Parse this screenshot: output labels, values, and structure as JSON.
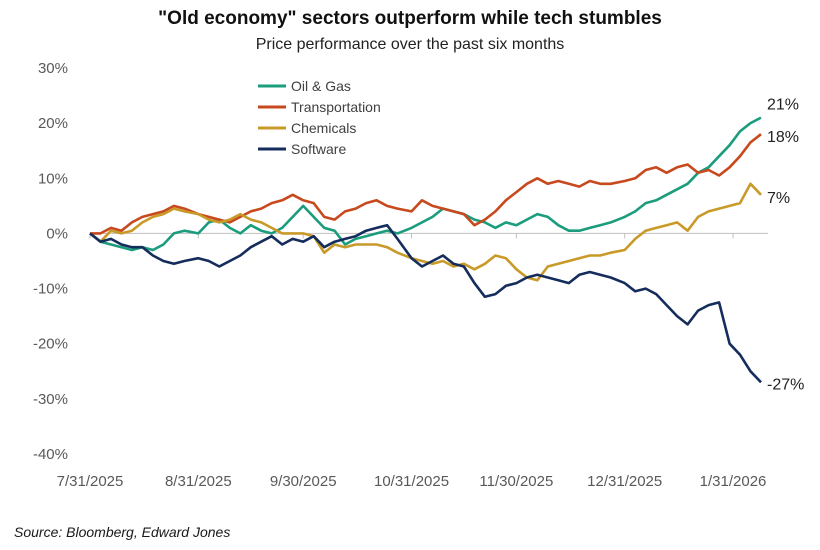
{
  "chart_data": {
    "type": "line",
    "title": "\"Old economy\" sectors outperform while tech stumbles",
    "subtitle": "Price performance over the past six months",
    "source": "Source: Bloomberg, Edward Jones",
    "y_unit": "%",
    "ylim": [
      -40,
      30
    ],
    "y_ticks": [
      {
        "value": 30,
        "label": "30%"
      },
      {
        "value": 20,
        "label": "20%"
      },
      {
        "value": 10,
        "label": "10%"
      },
      {
        "value": 0,
        "label": "0%"
      },
      {
        "value": -10,
        "label": "-10%"
      },
      {
        "value": -20,
        "label": "-20%"
      },
      {
        "value": -30,
        "label": "-30%"
      },
      {
        "value": -40,
        "label": "-40%"
      }
    ],
    "x_range": [
      "2025-07-31",
      "2026-02-10"
    ],
    "x_ticks": [
      {
        "date": "2025-07-31",
        "label": "7/31/2025"
      },
      {
        "date": "2025-08-31",
        "label": "8/31/2025"
      },
      {
        "date": "2025-09-30",
        "label": "9/30/2025"
      },
      {
        "date": "2025-10-31",
        "label": "10/31/2025"
      },
      {
        "date": "2025-11-30",
        "label": "11/30/2025"
      },
      {
        "date": "2025-12-31",
        "label": "12/31/2025"
      },
      {
        "date": "2026-01-31",
        "label": "1/31/2026"
      }
    ],
    "legend_position": "top-left",
    "grid": false,
    "series": [
      {
        "name": "Oil & Gas",
        "color": "#1a9c7d",
        "end_label": "21%",
        "points": [
          [
            "2025-07-31",
            0
          ],
          [
            "2025-08-03",
            -1.5
          ],
          [
            "2025-08-06",
            -2
          ],
          [
            "2025-08-09",
            -2.5
          ],
          [
            "2025-08-12",
            -3
          ],
          [
            "2025-08-15",
            -2.5
          ],
          [
            "2025-08-18",
            -3
          ],
          [
            "2025-08-21",
            -2
          ],
          [
            "2025-08-24",
            0
          ],
          [
            "2025-08-27",
            0.5
          ],
          [
            "2025-08-31",
            0
          ],
          [
            "2025-09-03",
            2
          ],
          [
            "2025-09-06",
            2.5
          ],
          [
            "2025-09-09",
            1
          ],
          [
            "2025-09-12",
            0
          ],
          [
            "2025-09-15",
            1.5
          ],
          [
            "2025-09-18",
            0.5
          ],
          [
            "2025-09-21",
            0
          ],
          [
            "2025-09-24",
            1
          ],
          [
            "2025-09-27",
            3
          ],
          [
            "2025-09-30",
            5
          ],
          [
            "2025-10-03",
            3
          ],
          [
            "2025-10-06",
            1
          ],
          [
            "2025-10-09",
            0.5
          ],
          [
            "2025-10-12",
            -2
          ],
          [
            "2025-10-15",
            -1
          ],
          [
            "2025-10-18",
            -0.5
          ],
          [
            "2025-10-21",
            0
          ],
          [
            "2025-10-24",
            0.5
          ],
          [
            "2025-10-27",
            0
          ],
          [
            "2025-10-31",
            1
          ],
          [
            "2025-11-03",
            2
          ],
          [
            "2025-11-06",
            3
          ],
          [
            "2025-11-09",
            4.5
          ],
          [
            "2025-11-12",
            4
          ],
          [
            "2025-11-15",
            3.5
          ],
          [
            "2025-11-18",
            2.5
          ],
          [
            "2025-11-21",
            2
          ],
          [
            "2025-11-24",
            1
          ],
          [
            "2025-11-27",
            2
          ],
          [
            "2025-11-30",
            1.5
          ],
          [
            "2025-12-03",
            2.5
          ],
          [
            "2025-12-06",
            3.5
          ],
          [
            "2025-12-09",
            3
          ],
          [
            "2025-12-12",
            1.5
          ],
          [
            "2025-12-15",
            0.5
          ],
          [
            "2025-12-18",
            0.5
          ],
          [
            "2025-12-21",
            1
          ],
          [
            "2025-12-24",
            1.5
          ],
          [
            "2025-12-27",
            2
          ],
          [
            "2025-12-31",
            3
          ],
          [
            "2026-01-03",
            4
          ],
          [
            "2026-01-06",
            5.5
          ],
          [
            "2026-01-09",
            6
          ],
          [
            "2026-01-12",
            7
          ],
          [
            "2026-01-15",
            8
          ],
          [
            "2026-01-18",
            9
          ],
          [
            "2026-01-21",
            11
          ],
          [
            "2026-01-24",
            12
          ],
          [
            "2026-01-27",
            14
          ],
          [
            "2026-01-30",
            16
          ],
          [
            "2026-02-02",
            18.5
          ],
          [
            "2026-02-05",
            20
          ],
          [
            "2026-02-08",
            21
          ]
        ]
      },
      {
        "name": "Transportation",
        "color": "#c8491d",
        "end_label": "18%",
        "points": [
          [
            "2025-07-31",
            0
          ],
          [
            "2025-08-03",
            0
          ],
          [
            "2025-08-06",
            1
          ],
          [
            "2025-08-09",
            0.5
          ],
          [
            "2025-08-12",
            2
          ],
          [
            "2025-08-15",
            3
          ],
          [
            "2025-08-18",
            3.5
          ],
          [
            "2025-08-21",
            4
          ],
          [
            "2025-08-24",
            5
          ],
          [
            "2025-08-27",
            4.5
          ],
          [
            "2025-08-31",
            3.5
          ],
          [
            "2025-09-03",
            3
          ],
          [
            "2025-09-06",
            2.5
          ],
          [
            "2025-09-09",
            2
          ],
          [
            "2025-09-12",
            3
          ],
          [
            "2025-09-15",
            4
          ],
          [
            "2025-09-18",
            4.5
          ],
          [
            "2025-09-21",
            5.5
          ],
          [
            "2025-09-24",
            6
          ],
          [
            "2025-09-27",
            7
          ],
          [
            "2025-09-30",
            6
          ],
          [
            "2025-10-03",
            5.5
          ],
          [
            "2025-10-06",
            3
          ],
          [
            "2025-10-09",
            2.5
          ],
          [
            "2025-10-12",
            4
          ],
          [
            "2025-10-15",
            4.5
          ],
          [
            "2025-10-18",
            5.5
          ],
          [
            "2025-10-21",
            6
          ],
          [
            "2025-10-24",
            5
          ],
          [
            "2025-10-27",
            4.5
          ],
          [
            "2025-10-31",
            4
          ],
          [
            "2025-11-03",
            6
          ],
          [
            "2025-11-06",
            5
          ],
          [
            "2025-11-09",
            4.5
          ],
          [
            "2025-11-12",
            4
          ],
          [
            "2025-11-15",
            3.5
          ],
          [
            "2025-11-18",
            1.5
          ],
          [
            "2025-11-21",
            2.5
          ],
          [
            "2025-11-24",
            4
          ],
          [
            "2025-11-27",
            6
          ],
          [
            "2025-11-30",
            7.5
          ],
          [
            "2025-12-03",
            9
          ],
          [
            "2025-12-06",
            10
          ],
          [
            "2025-12-09",
            9
          ],
          [
            "2025-12-12",
            9.5
          ],
          [
            "2025-12-15",
            9
          ],
          [
            "2025-12-18",
            8.5
          ],
          [
            "2025-12-21",
            9.5
          ],
          [
            "2025-12-24",
            9
          ],
          [
            "2025-12-27",
            9
          ],
          [
            "2025-12-31",
            9.5
          ],
          [
            "2026-01-03",
            10
          ],
          [
            "2026-01-06",
            11.5
          ],
          [
            "2026-01-09",
            12
          ],
          [
            "2026-01-12",
            11
          ],
          [
            "2026-01-15",
            12
          ],
          [
            "2026-01-18",
            12.5
          ],
          [
            "2026-01-21",
            11
          ],
          [
            "2026-01-24",
            11.5
          ],
          [
            "2026-01-27",
            10.5
          ],
          [
            "2026-01-30",
            12
          ],
          [
            "2026-02-02",
            14
          ],
          [
            "2026-02-05",
            16.5
          ],
          [
            "2026-02-08",
            18
          ]
        ]
      },
      {
        "name": "Chemicals",
        "color": "#c99a28",
        "end_label": "7%",
        "points": [
          [
            "2025-07-31",
            0
          ],
          [
            "2025-08-03",
            -1.5
          ],
          [
            "2025-08-06",
            0.5
          ],
          [
            "2025-08-09",
            0
          ],
          [
            "2025-08-12",
            0.5
          ],
          [
            "2025-08-15",
            2
          ],
          [
            "2025-08-18",
            3
          ],
          [
            "2025-08-21",
            3.5
          ],
          [
            "2025-08-24",
            4.5
          ],
          [
            "2025-08-27",
            4
          ],
          [
            "2025-08-31",
            3.5
          ],
          [
            "2025-09-03",
            2.5
          ],
          [
            "2025-09-06",
            2
          ],
          [
            "2025-09-09",
            2.5
          ],
          [
            "2025-09-12",
            3.5
          ],
          [
            "2025-09-15",
            2.5
          ],
          [
            "2025-09-18",
            2
          ],
          [
            "2025-09-21",
            1
          ],
          [
            "2025-09-24",
            0
          ],
          [
            "2025-09-27",
            0
          ],
          [
            "2025-09-30",
            0
          ],
          [
            "2025-10-03",
            -0.5
          ],
          [
            "2025-10-06",
            -3.5
          ],
          [
            "2025-10-09",
            -2
          ],
          [
            "2025-10-12",
            -2.5
          ],
          [
            "2025-10-15",
            -2
          ],
          [
            "2025-10-18",
            -2
          ],
          [
            "2025-10-21",
            -2
          ],
          [
            "2025-10-24",
            -2.5
          ],
          [
            "2025-10-27",
            -3.5
          ],
          [
            "2025-10-31",
            -4.5
          ],
          [
            "2025-11-03",
            -5
          ],
          [
            "2025-11-06",
            -5.5
          ],
          [
            "2025-11-09",
            -5
          ],
          [
            "2025-11-12",
            -6
          ],
          [
            "2025-11-15",
            -5.5
          ],
          [
            "2025-11-18",
            -6.5
          ],
          [
            "2025-11-21",
            -5.5
          ],
          [
            "2025-11-24",
            -4
          ],
          [
            "2025-11-27",
            -4.5
          ],
          [
            "2025-11-30",
            -6.5
          ],
          [
            "2025-12-03",
            -8
          ],
          [
            "2025-12-06",
            -8.5
          ],
          [
            "2025-12-09",
            -6
          ],
          [
            "2025-12-12",
            -5.5
          ],
          [
            "2025-12-15",
            -5
          ],
          [
            "2025-12-18",
            -4.5
          ],
          [
            "2025-12-21",
            -4
          ],
          [
            "2025-12-24",
            -4
          ],
          [
            "2025-12-27",
            -3.5
          ],
          [
            "2025-12-31",
            -3
          ],
          [
            "2026-01-03",
            -1
          ],
          [
            "2026-01-06",
            0.5
          ],
          [
            "2026-01-09",
            1
          ],
          [
            "2026-01-12",
            1.5
          ],
          [
            "2026-01-15",
            2
          ],
          [
            "2026-01-18",
            0.5
          ],
          [
            "2026-01-21",
            3
          ],
          [
            "2026-01-24",
            4
          ],
          [
            "2026-01-27",
            4.5
          ],
          [
            "2026-01-30",
            5
          ],
          [
            "2026-02-02",
            5.5
          ],
          [
            "2026-02-05",
            9
          ],
          [
            "2026-02-08",
            7
          ]
        ]
      },
      {
        "name": "Software",
        "color": "#142d5c",
        "end_label": "-27%",
        "points": [
          [
            "2025-07-31",
            0
          ],
          [
            "2025-08-03",
            -1.5
          ],
          [
            "2025-08-06",
            -1
          ],
          [
            "2025-08-09",
            -2
          ],
          [
            "2025-08-12",
            -2.5
          ],
          [
            "2025-08-15",
            -2.5
          ],
          [
            "2025-08-18",
            -4
          ],
          [
            "2025-08-21",
            -5
          ],
          [
            "2025-08-24",
            -5.5
          ],
          [
            "2025-08-27",
            -5
          ],
          [
            "2025-08-31",
            -4.5
          ],
          [
            "2025-09-03",
            -5
          ],
          [
            "2025-09-06",
            -6
          ],
          [
            "2025-09-09",
            -5
          ],
          [
            "2025-09-12",
            -4
          ],
          [
            "2025-09-15",
            -2.5
          ],
          [
            "2025-09-18",
            -1.5
          ],
          [
            "2025-09-21",
            -0.5
          ],
          [
            "2025-09-24",
            -2
          ],
          [
            "2025-09-27",
            -1
          ],
          [
            "2025-09-30",
            -1.5
          ],
          [
            "2025-10-03",
            -0.5
          ],
          [
            "2025-10-06",
            -2.5
          ],
          [
            "2025-10-09",
            -1.5
          ],
          [
            "2025-10-12",
            -1
          ],
          [
            "2025-10-15",
            -0.5
          ],
          [
            "2025-10-18",
            0.5
          ],
          [
            "2025-10-21",
            1
          ],
          [
            "2025-10-24",
            1.5
          ],
          [
            "2025-10-27",
            -1
          ],
          [
            "2025-10-31",
            -4.5
          ],
          [
            "2025-11-03",
            -6
          ],
          [
            "2025-11-06",
            -5
          ],
          [
            "2025-11-09",
            -4
          ],
          [
            "2025-11-12",
            -5.5
          ],
          [
            "2025-11-15",
            -6
          ],
          [
            "2025-11-18",
            -9
          ],
          [
            "2025-11-21",
            -11.5
          ],
          [
            "2025-11-24",
            -11
          ],
          [
            "2025-11-27",
            -9.5
          ],
          [
            "2025-11-30",
            -9
          ],
          [
            "2025-12-03",
            -8
          ],
          [
            "2025-12-06",
            -7.5
          ],
          [
            "2025-12-09",
            -8
          ],
          [
            "2025-12-12",
            -8.5
          ],
          [
            "2025-12-15",
            -9
          ],
          [
            "2025-12-18",
            -7.5
          ],
          [
            "2025-12-21",
            -7
          ],
          [
            "2025-12-24",
            -7.5
          ],
          [
            "2025-12-27",
            -8
          ],
          [
            "2025-12-31",
            -9
          ],
          [
            "2026-01-03",
            -10.5
          ],
          [
            "2026-01-06",
            -10
          ],
          [
            "2026-01-09",
            -11
          ],
          [
            "2026-01-12",
            -13
          ],
          [
            "2026-01-15",
            -15
          ],
          [
            "2026-01-18",
            -16.5
          ],
          [
            "2026-01-21",
            -14
          ],
          [
            "2026-01-24",
            -13
          ],
          [
            "2026-01-27",
            -12.5
          ],
          [
            "2026-01-30",
            -20
          ],
          [
            "2026-02-02",
            -22
          ],
          [
            "2026-02-05",
            -25
          ],
          [
            "2026-02-08",
            -27
          ]
        ]
      }
    ]
  }
}
